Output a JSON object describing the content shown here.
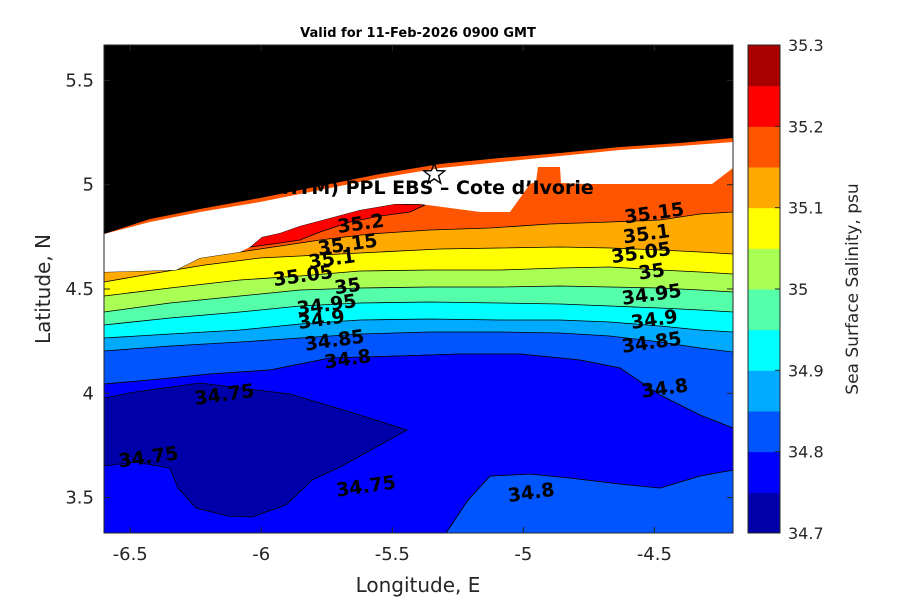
{
  "chart_data": {
    "type": "contourf",
    "title": "Valid for 11-Feb-2026 0900 GMT",
    "xlabel": "Longitude, E",
    "ylabel": "Latitude, N",
    "xlim": [
      -6.6,
      -4.2
    ],
    "ylim": [
      3.33,
      5.67
    ],
    "xticks": [
      -6.5,
      -6,
      -5.5,
      -5,
      -4.5
    ],
    "xtick_labels": [
      "-6.5",
      "-6",
      "-5.5",
      "-5",
      "-4.5"
    ],
    "yticks": [
      3.5,
      4,
      4.5,
      5,
      5.5
    ],
    "ytick_labels": [
      "3.5",
      "4",
      "4.5",
      "5",
      "5.5"
    ],
    "colorbar": {
      "label": "Sea Surface Salinity, psu",
      "range": [
        34.7,
        35.3
      ],
      "ticks": [
        "34.7",
        "34.8",
        "34.9",
        "35",
        "35.1",
        "35.2",
        "35.3"
      ],
      "levels": [
        34.7,
        34.75,
        34.8,
        34.85,
        34.9,
        34.95,
        35.0,
        35.05,
        35.1,
        35.15,
        35.2,
        35.25,
        35.3
      ],
      "colors": [
        "#0000aa",
        "#0000ff",
        "#0055ff",
        "#00aaff",
        "#00ffff",
        "#55ffaa",
        "#aaff55",
        "#ffff00",
        "#ffaa00",
        "#ff5500",
        "#ff0000",
        "#aa0000"
      ]
    },
    "land_color": "#000000",
    "site": {
      "label": "(ONHYM) PPL EBS  – Cote d’Ivorie",
      "lon": -5.34,
      "lat": 5.05,
      "marker": "star"
    },
    "contour_labels": [
      {
        "text": "35.2",
        "lon": -5.62,
        "lat": 4.81
      },
      {
        "text": "35.15",
        "lon": -5.67,
        "lat": 4.71
      },
      {
        "text": "35.1",
        "lon": -5.73,
        "lat": 4.64
      },
      {
        "text": "35.05",
        "lon": -5.84,
        "lat": 4.56
      },
      {
        "text": "35",
        "lon": -5.67,
        "lat": 4.51
      },
      {
        "text": "34.95",
        "lon": -5.75,
        "lat": 4.42
      },
      {
        "text": "34.9",
        "lon": -5.77,
        "lat": 4.35
      },
      {
        "text": "34.85",
        "lon": -5.72,
        "lat": 4.25
      },
      {
        "text": "34.8",
        "lon": -5.67,
        "lat": 4.16
      },
      {
        "text": "34.75",
        "lon": -6.14,
        "lat": 3.99
      },
      {
        "text": "34.75",
        "lon": -6.43,
        "lat": 3.69
      },
      {
        "text": "34.75",
        "lon": -5.6,
        "lat": 3.55
      },
      {
        "text": "34.8",
        "lon": -4.97,
        "lat": 3.52
      },
      {
        "text": "35.15",
        "lon": -4.5,
        "lat": 4.86
      },
      {
        "text": "35.1",
        "lon": -4.53,
        "lat": 4.76
      },
      {
        "text": "35.05",
        "lon": -4.55,
        "lat": 4.67
      },
      {
        "text": "35",
        "lon": -4.51,
        "lat": 4.58
      },
      {
        "text": "34.95",
        "lon": -4.51,
        "lat": 4.47
      },
      {
        "text": "34.9",
        "lon": -4.5,
        "lat": 4.35
      },
      {
        "text": "34.85",
        "lon": -4.51,
        "lat": 4.24
      },
      {
        "text": "34.8",
        "lon": -4.46,
        "lat": 4.02
      }
    ]
  }
}
